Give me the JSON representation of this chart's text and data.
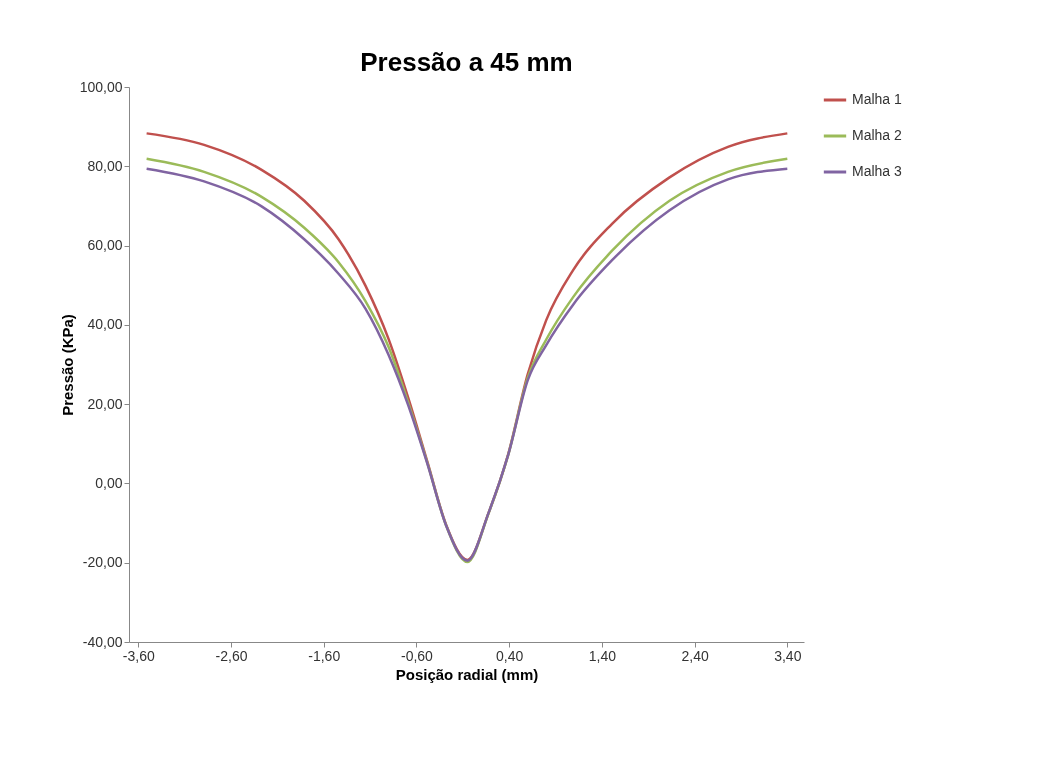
{
  "chart_data": {
    "type": "line",
    "title": "Pressão a 45 mm",
    "xlabel": "Posição radial (mm)",
    "ylabel": "Pressão (KPa)",
    "xlim": [
      -3.7,
      3.58
    ],
    "ylim": [
      -40,
      100
    ],
    "xticks": [
      {
        "value": -3.6,
        "label": "-3,60"
      },
      {
        "value": -2.6,
        "label": "-2,60"
      },
      {
        "value": -1.6,
        "label": "-1,60"
      },
      {
        "value": -0.6,
        "label": "-0,60"
      },
      {
        "value": 0.4,
        "label": "0,40"
      },
      {
        "value": 1.4,
        "label": "1,40"
      },
      {
        "value": 2.4,
        "label": "2,40"
      },
      {
        "value": 3.4,
        "label": "3,40"
      }
    ],
    "yticks": [
      {
        "value": -40,
        "label": "-40,00"
      },
      {
        "value": -20,
        "label": "-20,00"
      },
      {
        "value": 0,
        "label": "0,00"
      },
      {
        "value": 20,
        "label": "20,00"
      },
      {
        "value": 40,
        "label": "40,00"
      },
      {
        "value": 60,
        "label": "60,00"
      },
      {
        "value": 80,
        "label": "80,00"
      },
      {
        "value": 100,
        "label": "100,00"
      }
    ],
    "grid": false,
    "legend": "right",
    "marker": "none",
    "line_style": "solid",
    "series": [
      {
        "name": "Malha 1",
        "color": "#c0504d",
        "x": [
          -3.51,
          -2.89,
          -2.27,
          -1.81,
          -1.44,
          -1.15,
          -0.9,
          -0.69,
          -0.48,
          -0.28,
          -0.05,
          0.18,
          0.39,
          0.6,
          0.8,
          1.09,
          1.51,
          2.13,
          2.76,
          3.4
        ],
        "values": [
          88.3,
          85.4,
          79.1,
          71.3,
          61.6,
          49.9,
          36.4,
          21.7,
          5.3,
          -10.4,
          -19.3,
          -7.3,
          7.4,
          27.5,
          41.2,
          53.8,
          65.5,
          77.2,
          84.9,
          88.3
        ]
      },
      {
        "name": "Malha 2",
        "color": "#9bbb59",
        "x": [
          -3.51,
          -2.89,
          -2.27,
          -1.81,
          -1.44,
          -1.15,
          -0.9,
          -0.69,
          -0.48,
          -0.28,
          -0.05,
          0.18,
          0.39,
          0.6,
          0.8,
          1.09,
          1.51,
          2.13,
          2.76,
          3.4
        ],
        "values": [
          81.9,
          78.6,
          72.3,
          64.5,
          55.8,
          46.0,
          34.4,
          20.5,
          5.0,
          -10.6,
          -19.8,
          -7.4,
          7.2,
          26.6,
          36.3,
          47.0,
          58.7,
          71.3,
          78.6,
          81.9
        ]
      },
      {
        "name": "Malha 3",
        "color": "#8064a2",
        "x": [
          -3.51,
          -2.89,
          -2.27,
          -1.81,
          -1.44,
          -1.15,
          -0.9,
          -0.69,
          -0.48,
          -0.28,
          -0.05,
          0.18,
          0.39,
          0.6,
          0.8,
          1.09,
          1.51,
          2.13,
          2.76,
          3.4
        ],
        "values": [
          79.4,
          76.2,
          69.9,
          61.6,
          52.9,
          44.1,
          32.4,
          19.8,
          4.8,
          -10.6,
          -19.5,
          -7.3,
          7.2,
          26.0,
          34.9,
          45.1,
          56.3,
          68.9,
          76.7,
          79.4
        ]
      }
    ]
  }
}
